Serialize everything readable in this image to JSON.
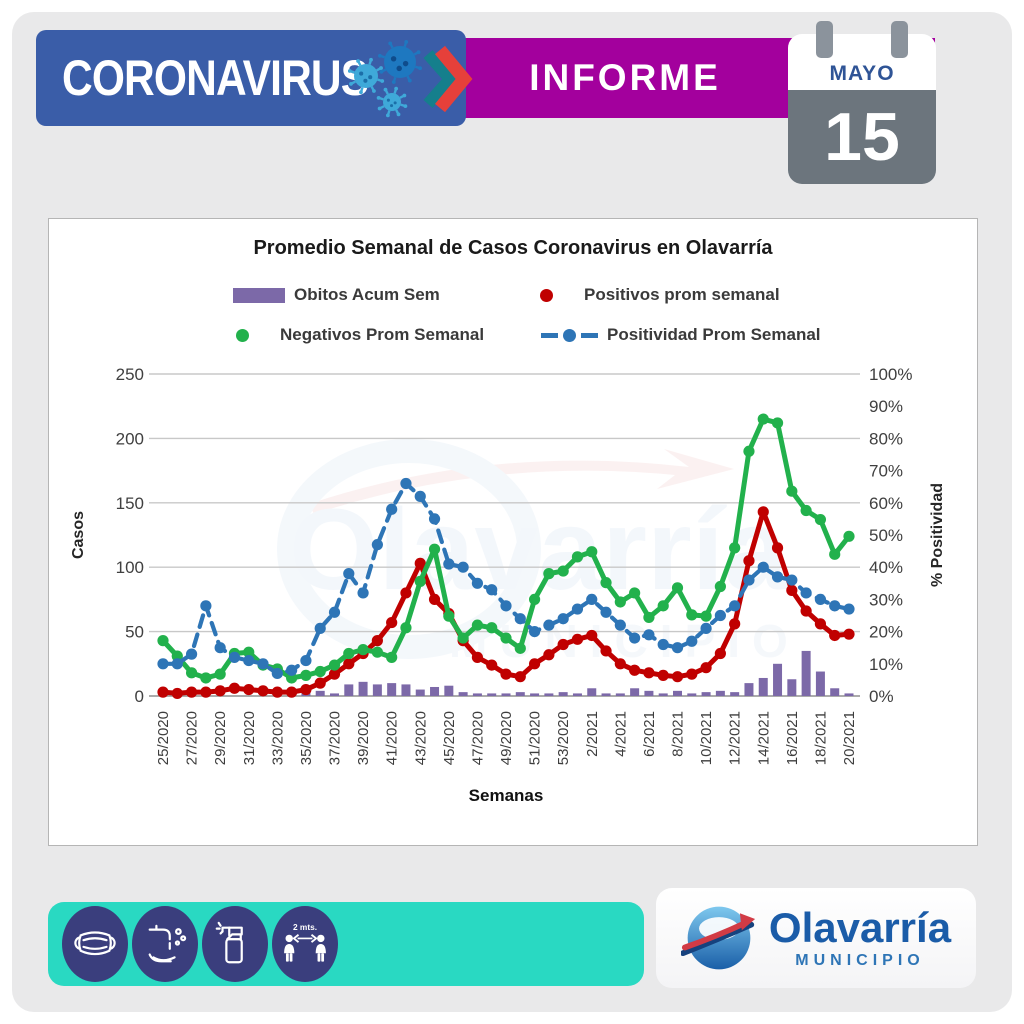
{
  "header": {
    "title": "CORONAVIRUS",
    "report_label": "INFORME",
    "calendar": {
      "month": "MAYO",
      "day": "15"
    }
  },
  "colors": {
    "header_blue": "#3A5DA8",
    "band_purple": "#A3009D",
    "calendar_gray": "#6C757D",
    "footer_teal": "#29D9C2",
    "icon_navy": "#3A3E7D",
    "logo_blue": "#1B5CA8"
  },
  "chart_data": {
    "type": "combo",
    "title": "Promedio Semanal de Casos Coronavirus en Olavarría",
    "xlabel": "Semanas",
    "left_axis": {
      "label": "Casos",
      "min": 0,
      "max": 250,
      "step": 50
    },
    "right_axis": {
      "label": "% Positividad",
      "min": 0,
      "max": 100,
      "step": 10,
      "format": "percent"
    },
    "x_tick_labels": [
      "25/2020",
      "27/2020",
      "29/2020",
      "31/2020",
      "33/2020",
      "35/2020",
      "37/2020",
      "39/2020",
      "41/2020",
      "43/2020",
      "45/2020",
      "47/2020",
      "49/2020",
      "51/2020",
      "53/2020",
      "2/2021",
      "4/2021",
      "6/2021",
      "8/2021",
      "10/2021",
      "12/2021",
      "14/2021",
      "16/2021",
      "18/2021",
      "20/2021"
    ],
    "n_points": 49,
    "legend_position": "top",
    "grid": true,
    "series": [
      {
        "name": "Obitos Acum Sem",
        "type": "bar",
        "axis": "left",
        "color": "#7C69A8",
        "values": [
          0,
          0,
          0,
          0,
          0,
          0,
          0,
          0,
          0,
          0,
          3,
          4,
          2,
          9,
          11,
          9,
          10,
          9,
          5,
          7,
          8,
          3,
          2,
          2,
          2,
          3,
          2,
          2,
          3,
          2,
          6,
          2,
          2,
          6,
          4,
          2,
          4,
          2,
          3,
          4,
          3,
          10,
          14,
          25,
          13,
          35,
          19,
          6,
          2
        ]
      },
      {
        "name": "Positivos prom semanal",
        "type": "line",
        "axis": "left",
        "color": "#C00000",
        "values": [
          3,
          2,
          3,
          3,
          4,
          6,
          5,
          4,
          3,
          3,
          5,
          10,
          17,
          25,
          33,
          43,
          57,
          80,
          103,
          75,
          64,
          43,
          30,
          24,
          17,
          15,
          25,
          32,
          40,
          44,
          47,
          35,
          25,
          20,
          18,
          16,
          15,
          17,
          22,
          33,
          56,
          105,
          143,
          115,
          82,
          66,
          56,
          47,
          48
        ]
      },
      {
        "name": "Negativos Prom Semanal",
        "type": "line",
        "axis": "left",
        "color": "#22B14C",
        "values": [
          43,
          31,
          18,
          14,
          17,
          33,
          34,
          24,
          21,
          14,
          16,
          19,
          24,
          33,
          36,
          34,
          30,
          53,
          89,
          114,
          62,
          45,
          55,
          53,
          45,
          37,
          75,
          95,
          97,
          108,
          112,
          88,
          73,
          80,
          61,
          70,
          84,
          63,
          62,
          85,
          115,
          190,
          215,
          212,
          159,
          144,
          137,
          110,
          124
        ]
      },
      {
        "name": "Positividad Prom Semanal",
        "type": "line-dashed",
        "axis": "right",
        "color": "#2E75B6",
        "values": [
          10,
          10,
          13,
          28,
          15,
          12,
          11,
          10,
          7,
          8,
          11,
          21,
          26,
          38,
          32,
          47,
          58,
          66,
          62,
          55,
          41,
          40,
          35,
          33,
          28,
          24,
          20,
          22,
          24,
          27,
          30,
          26,
          22,
          18,
          19,
          16,
          15,
          17,
          21,
          25,
          28,
          36,
          40,
          37,
          36,
          32,
          30,
          28,
          27
        ]
      }
    ]
  },
  "watermark": {
    "line1": "Olavarría",
    "line2": "MUNICIPIO"
  },
  "footer": {
    "icons": [
      "mask-icon",
      "handwash-icon",
      "spray-icon",
      "distance-icon"
    ],
    "distance_label": "2 mts.",
    "logo": {
      "name": "Olavarría",
      "subtitle": "MUNICIPIO"
    }
  }
}
